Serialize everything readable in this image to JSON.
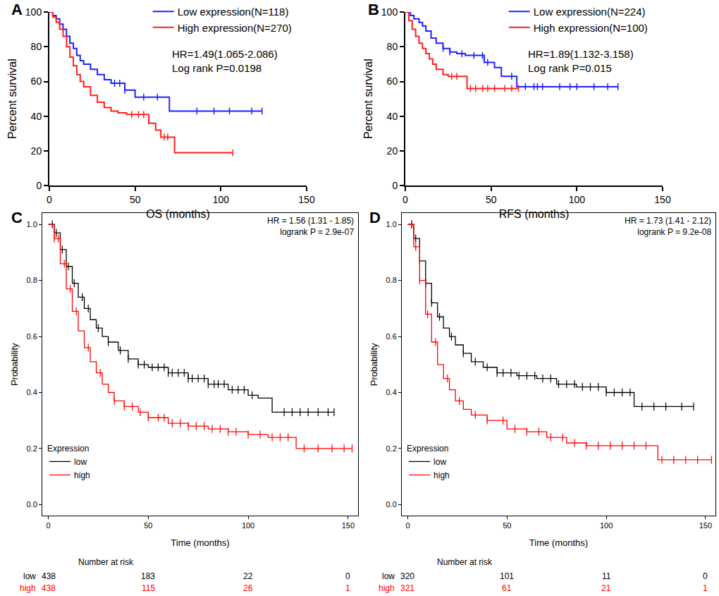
{
  "chart_data": [
    {
      "type": "line",
      "title": "A",
      "line_style": "step",
      "grid": false,
      "legend": "upper right",
      "x_label": "OS (months)",
      "y_label": "Percent survival",
      "xlim": [
        0,
        150
      ],
      "xticks": [
        0,
        50,
        100,
        150
      ],
      "ylim": [
        0,
        100
      ],
      "yticks": [
        0,
        20,
        40,
        60,
        80,
        100
      ],
      "annotations": [
        "HR=1.49(1.065-2.086)",
        "Log rank P=0.0198"
      ],
      "series": [
        {
          "name": "Low expression(N=118)",
          "color": "#1f1fff",
          "x": [
            0,
            2,
            4,
            6,
            8,
            10,
            12,
            14,
            16,
            18,
            20,
            24,
            28,
            32,
            36,
            44,
            50,
            70,
            124
          ],
          "values": [
            100,
            98,
            96,
            93,
            90,
            86,
            82,
            79,
            75,
            72,
            70,
            67,
            64,
            61,
            59,
            55,
            51,
            43,
            43
          ],
          "censored": [
            38,
            41,
            44,
            55,
            63,
            86,
            96,
            105,
            118,
            124
          ]
        },
        {
          "name": "High expression(N=270)",
          "color": "#ff1f1f",
          "x": [
            0,
            2,
            4,
            6,
            8,
            10,
            12,
            14,
            16,
            18,
            20,
            24,
            28,
            32,
            36,
            40,
            45,
            58,
            62,
            65,
            73,
            107
          ],
          "values": [
            100,
            97,
            94,
            90,
            86,
            80,
            74,
            69,
            64,
            60,
            57,
            52,
            48,
            45,
            43,
            42,
            41,
            36,
            32,
            28,
            19,
            19
          ],
          "censored": [
            48,
            52,
            55,
            67,
            69,
            107
          ]
        }
      ]
    },
    {
      "type": "line",
      "title": "B",
      "line_style": "step",
      "grid": false,
      "legend": "upper right",
      "x_label": "RFS (months)",
      "y_label": "Percent survival",
      "xlim": [
        0,
        150
      ],
      "xticks": [
        0,
        50,
        100,
        150
      ],
      "ylim": [
        0,
        100
      ],
      "yticks": [
        0,
        20,
        40,
        60,
        80,
        100
      ],
      "annotations": [
        "HR=1.89(1.132-3.158)",
        "Log rank P=0.015"
      ],
      "series": [
        {
          "name": "Low expression(N=224)",
          "color": "#1f1fff",
          "x": [
            0,
            3,
            5,
            8,
            10,
            12,
            15,
            18,
            22,
            26,
            30,
            35,
            46,
            52,
            56,
            65,
            124
          ],
          "values": [
            100,
            98,
            96,
            94,
            92,
            89,
            85,
            82,
            79,
            77,
            76,
            75,
            71,
            68,
            63,
            57,
            57
          ],
          "censored": [
            22,
            26,
            33,
            40,
            45,
            48,
            62,
            70,
            75,
            77,
            80,
            90,
            96,
            100,
            110,
            118,
            124
          ]
        },
        {
          "name": "High expression(N=100)",
          "color": "#ff1f1f",
          "x": [
            0,
            2,
            4,
            6,
            8,
            10,
            12,
            14,
            16,
            18,
            22,
            25,
            36,
            66
          ],
          "values": [
            100,
            95,
            90,
            86,
            82,
            79,
            76,
            73,
            70,
            67,
            64,
            63,
            56,
            56
          ],
          "censored": [
            27,
            30,
            38,
            41,
            45,
            48,
            52,
            58,
            62,
            66
          ]
        }
      ]
    },
    {
      "type": "line",
      "title": "C",
      "line_style": "step",
      "grid": false,
      "legend": "lower left",
      "legend_title": "Expression",
      "x_label": "Time (months)",
      "y_label": "Probability",
      "xlim": [
        -3,
        155
      ],
      "xticks": [
        0,
        50,
        100,
        150
      ],
      "ylim": [
        -0.04,
        1.04
      ],
      "yticks": [
        {
          "value": 0,
          "label": "0.0"
        },
        {
          "value": 0.2,
          "label": "0.2"
        },
        {
          "value": 0.4,
          "label": "0.4"
        },
        {
          "value": 0.6,
          "label": "0.6"
        },
        {
          "value": 0.8,
          "label": "0.8"
        },
        {
          "value": 1,
          "label": "1.0"
        }
      ],
      "annotations": [
        "HR = 1.56 (1.31 - 1.85)",
        "logrank P = 2.9e-07"
      ],
      "series": [
        {
          "name": "low",
          "color": "#000000",
          "x": [
            0,
            3,
            6,
            9,
            12,
            15,
            18,
            21,
            24,
            27,
            30,
            35,
            40,
            45,
            50,
            60,
            70,
            80,
            90,
            100,
            105,
            112,
            143
          ],
          "values": [
            1.0,
            0.97,
            0.91,
            0.85,
            0.79,
            0.74,
            0.7,
            0.66,
            0.63,
            0.6,
            0.58,
            0.55,
            0.52,
            0.5,
            0.49,
            0.47,
            0.45,
            0.43,
            0.41,
            0.39,
            0.38,
            0.33,
            0.33
          ],
          "censored": [
            2,
            4,
            7,
            10,
            13,
            17,
            20,
            25,
            30,
            36,
            40,
            45,
            48,
            52,
            55,
            58,
            60,
            62,
            65,
            68,
            70,
            72,
            75,
            78,
            80,
            83,
            85,
            88,
            92,
            95,
            98,
            102,
            118,
            122,
            126,
            130,
            135,
            140,
            143
          ]
        },
        {
          "name": "high",
          "color": "#ff0000",
          "x": [
            0,
            3,
            6,
            9,
            12,
            15,
            18,
            21,
            24,
            27,
            30,
            33,
            38,
            45,
            50,
            60,
            70,
            80,
            90,
            100,
            110,
            124,
            152
          ],
          "values": [
            1.0,
            0.95,
            0.86,
            0.77,
            0.69,
            0.62,
            0.56,
            0.51,
            0.47,
            0.43,
            0.4,
            0.37,
            0.35,
            0.33,
            0.31,
            0.29,
            0.28,
            0.27,
            0.26,
            0.25,
            0.24,
            0.2,
            0.2
          ],
          "censored": [
            3,
            5,
            8,
            11,
            14,
            20,
            26,
            33,
            38,
            42,
            46,
            50,
            55,
            58,
            62,
            66,
            70,
            74,
            78,
            82,
            86,
            90,
            94,
            100,
            106,
            112,
            116,
            120,
            128,
            135,
            142,
            148,
            152
          ]
        }
      ],
      "number_at_risk": {
        "title": "Number at risk",
        "times": [
          0,
          50,
          100,
          150
        ],
        "rows": [
          {
            "name": "low",
            "color": "#000000",
            "values": [
              438,
              183,
              22,
              0
            ]
          },
          {
            "name": "high",
            "color": "#ff0000",
            "values": [
              438,
              115,
              26,
              1
            ]
          }
        ]
      }
    },
    {
      "type": "line",
      "title": "D",
      "line_style": "step",
      "grid": false,
      "legend": "lower left",
      "legend_title": "Expression",
      "x_label": "Time (months)",
      "y_label": "Probability",
      "xlim": [
        -3,
        155
      ],
      "xticks": [
        0,
        50,
        100,
        150
      ],
      "ylim": [
        -0.04,
        1.04
      ],
      "yticks": [
        {
          "value": 0,
          "label": "0.0"
        },
        {
          "value": 0.2,
          "label": "0.2"
        },
        {
          "value": 0.4,
          "label": "0.4"
        },
        {
          "value": 0.6,
          "label": "0.6"
        },
        {
          "value": 0.8,
          "label": "0.8"
        },
        {
          "value": 1,
          "label": "1.0"
        }
      ],
      "annotations": [
        "HR = 1.73 (1.41 - 2.12)",
        "logrank P = 9.2e-08"
      ],
      "series": [
        {
          "name": "low",
          "color": "#000000",
          "x": [
            0,
            3,
            6,
            9,
            12,
            15,
            18,
            21,
            24,
            28,
            32,
            38,
            45,
            55,
            65,
            75,
            85,
            100,
            114,
            144
          ],
          "values": [
            1.0,
            0.95,
            0.87,
            0.79,
            0.72,
            0.67,
            0.63,
            0.6,
            0.57,
            0.54,
            0.51,
            0.49,
            0.47,
            0.46,
            0.45,
            0.43,
            0.42,
            0.4,
            0.35,
            0.35
          ],
          "censored": [
            2,
            4,
            6,
            9,
            12,
            16,
            22,
            28,
            34,
            40,
            45,
            48,
            52,
            56,
            60,
            64,
            68,
            72,
            76,
            80,
            84,
            88,
            92,
            96,
            100,
            104,
            108,
            112,
            118,
            124,
            130,
            138,
            144
          ]
        },
        {
          "name": "high",
          "color": "#ff0000",
          "x": [
            0,
            3,
            6,
            9,
            12,
            15,
            18,
            21,
            24,
            28,
            32,
            40,
            50,
            60,
            70,
            80,
            90,
            126,
            153
          ],
          "values": [
            1.0,
            0.92,
            0.8,
            0.68,
            0.58,
            0.5,
            0.45,
            0.41,
            0.37,
            0.34,
            0.32,
            0.3,
            0.27,
            0.26,
            0.24,
            0.22,
            0.21,
            0.16,
            0.16
          ],
          "censored": [
            2,
            4,
            6,
            10,
            14,
            20,
            26,
            34,
            40,
            48,
            54,
            60,
            66,
            72,
            78,
            84,
            90,
            96,
            102,
            108,
            114,
            120,
            128,
            134,
            140,
            146,
            153
          ]
        }
      ],
      "number_at_risk": {
        "title": "Number at risk",
        "times": [
          0,
          50,
          100,
          150
        ],
        "rows": [
          {
            "name": "low",
            "color": "#000000",
            "values": [
              320,
              101,
              11,
              0
            ]
          },
          {
            "name": "high",
            "color": "#ff0000",
            "values": [
              321,
              61,
              21,
              1
            ]
          }
        ]
      }
    }
  ]
}
